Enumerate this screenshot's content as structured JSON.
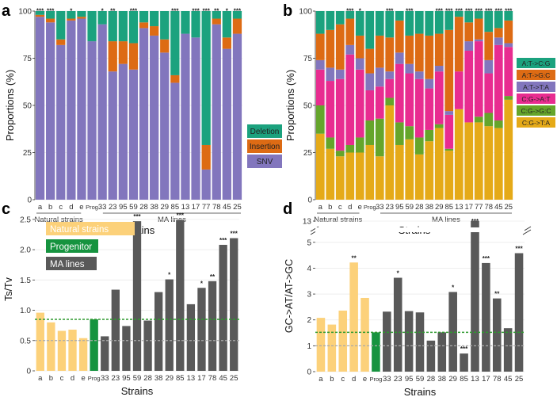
{
  "chart_data": [
    {
      "panel": "a",
      "type": "bar",
      "stacked": true,
      "xlabel": "Strains",
      "ylabel": "Proportions (%)",
      "ylim": [
        0,
        100
      ],
      "yticks": [
        "0",
        "25",
        "50",
        "75",
        "100"
      ],
      "categories": [
        "a",
        "b",
        "c",
        "d",
        "e",
        "Prog",
        "33",
        "23",
        "95",
        "59",
        "28",
        "38",
        "29",
        "85",
        "13",
        "17",
        "77",
        "78",
        "45",
        "25"
      ],
      "group_labels": [
        "Natural strains",
        "MA lines"
      ],
      "significance": [
        "***",
        "***",
        "",
        "*",
        "",
        "",
        "*",
        "**",
        "",
        "***",
        "",
        "",
        "",
        "***",
        "",
        "***",
        "***",
        "**",
        "*",
        "***"
      ],
      "legend": [
        "Deletion",
        "Insertion",
        "SNV"
      ],
      "colors": {
        "SNV": "#8276bd",
        "Insertion": "#dd6b14",
        "Deletion": "#1ba27e"
      },
      "series": [
        {
          "name": "SNV",
          "values": [
            97,
            94,
            82,
            95,
            96,
            84,
            93,
            68,
            72,
            69,
            91,
            87,
            78,
            62,
            88,
            86,
            16,
            93,
            80,
            88
          ]
        },
        {
          "name": "Insertion",
          "values": [
            1,
            2,
            3,
            1,
            1,
            0,
            0,
            16,
            12,
            14,
            3,
            5,
            7,
            4,
            0,
            0,
            13,
            3,
            6,
            8
          ]
        },
        {
          "name": "Deletion",
          "values": [
            2,
            4,
            15,
            4,
            3,
            16,
            7,
            16,
            16,
            17,
            6,
            8,
            15,
            34,
            12,
            14,
            71,
            4,
            14,
            4
          ]
        }
      ]
    },
    {
      "panel": "b",
      "type": "bar",
      "stacked": true,
      "xlabel": "Strains",
      "ylabel": "Proportions (%)",
      "ylim": [
        0,
        100
      ],
      "yticks": [
        "0",
        "25",
        "50",
        "75",
        "100"
      ],
      "categories": [
        "a",
        "b",
        "c",
        "d",
        "e",
        "Prog",
        "33",
        "23",
        "95",
        "59",
        "28",
        "38",
        "29",
        "85",
        "13",
        "17",
        "77",
        "78",
        "45",
        "25"
      ],
      "group_labels": [
        "Natural strains",
        "MA lines"
      ],
      "significance": [
        "",
        "",
        "",
        "***",
        "*",
        "",
        "",
        "***",
        "",
        "***",
        "",
        "",
        "***",
        "***",
        "***",
        "***",
        "***",
        "***",
        "***",
        "***"
      ],
      "legend": [
        "A:T->C:G",
        "A:T->G:C",
        "A:T->T:A",
        "C:G->A:T",
        "C:G->G:C",
        "C:G->T:A"
      ],
      "colors": {
        "A:T->C:G": "#1ba27e",
        "A:T->G:C": "#dd6b14",
        "A:T->T:A": "#8276bd",
        "C:G->A:T": "#e82c90",
        "C:G->G:C": "#65a52b",
        "C:G->T:A": "#e5aa18"
      },
      "series": [
        {
          "name": "C:G->T:A",
          "values": [
            35,
            27,
            23,
            25,
            25,
            29,
            23,
            50,
            29,
            32,
            24,
            31,
            38,
            26,
            48,
            41,
            41,
            39,
            38,
            53
          ]
        },
        {
          "name": "C:G->G:C",
          "values": [
            15,
            6,
            3,
            4,
            8,
            13,
            20,
            4,
            12,
            7,
            9,
            6,
            2,
            1,
            0,
            0,
            3,
            7,
            4,
            2
          ]
        },
        {
          "name": "C:G->A:T",
          "values": [
            19,
            30,
            38,
            48,
            36,
            16,
            17,
            10,
            31,
            28,
            31,
            22,
            28,
            18,
            20,
            38,
            40,
            21,
            40,
            26
          ]
        },
        {
          "name": "A:T->T:A",
          "values": [
            5,
            7,
            5,
            5,
            6,
            9,
            10,
            4,
            6,
            5,
            4,
            5,
            3,
            2,
            0,
            5,
            1,
            7,
            4,
            2
          ]
        },
        {
          "name": "A:T->G:C",
          "values": [
            14,
            20,
            24,
            14,
            12,
            13,
            17,
            18,
            17,
            15,
            20,
            23,
            17,
            43,
            29,
            10,
            11,
            15,
            5,
            12
          ]
        },
        {
          "name": "A:T->C:G",
          "values": [
            12,
            10,
            7,
            4,
            13,
            20,
            13,
            14,
            5,
            13,
            12,
            13,
            12,
            10,
            3,
            6,
            4,
            11,
            9,
            5
          ]
        }
      ]
    },
    {
      "panel": "c",
      "type": "bar",
      "xlabel": "Strains",
      "ylabel": "Ts/Tv",
      "ylim": [
        0,
        2.6
      ],
      "yticks": [
        "0",
        "0.5",
        "1.0",
        "1.5",
        "2.0",
        "2.5"
      ],
      "categories": [
        "a",
        "b",
        "c",
        "d",
        "e",
        "Prog",
        "33",
        "23",
        "95",
        "59",
        "28",
        "38",
        "29",
        "85",
        "13",
        "17",
        "78",
        "45",
        "25"
      ],
      "values": [
        0.96,
        0.8,
        0.66,
        0.68,
        0.54,
        0.85,
        0.57,
        1.34,
        0.74,
        2.47,
        0.83,
        1.3,
        1.51,
        2.49,
        1.1,
        1.37,
        1.48,
        2.08,
        2.19
      ],
      "groups": [
        "natural",
        "natural",
        "natural",
        "natural",
        "natural",
        "progenitor",
        "ma",
        "ma",
        "ma",
        "ma",
        "ma",
        "ma",
        "ma",
        "ma",
        "ma",
        "ma",
        "ma",
        "ma",
        "ma"
      ],
      "significance": [
        "",
        "",
        "",
        "",
        "",
        "",
        "",
        "",
        "",
        "***",
        "",
        "",
        "*",
        "***",
        "",
        "*",
        "**",
        "***",
        "***"
      ],
      "reference_lines": {
        "green": 0.85,
        "grey": 0.5
      },
      "legend": [
        "Natural strains",
        "Progenitor",
        "MA lines"
      ],
      "colors": {
        "natural": "#fcd17a",
        "progenitor": "#16933f",
        "ma": "#595959"
      }
    },
    {
      "panel": "d",
      "type": "bar",
      "xlabel": "Strains",
      "ylabel": "GC->AT/AT->GC",
      "ylim": [
        0,
        5.3
      ],
      "axis_break": [
        5.3,
        13
      ],
      "yticks": [
        "0",
        "1",
        "2",
        "3",
        "4",
        "5",
        "13"
      ],
      "categories": [
        "a",
        "b",
        "c",
        "d",
        "e",
        "Prog",
        "33",
        "23",
        "95",
        "59",
        "28",
        "38",
        "29",
        "85",
        "13",
        "17",
        "78",
        "45",
        "25"
      ],
      "values": [
        2.08,
        1.82,
        2.36,
        4.22,
        2.85,
        1.52,
        2.32,
        3.63,
        2.34,
        2.29,
        1.2,
        1.52,
        3.08,
        0.7,
        13.0,
        4.2,
        2.83,
        1.68,
        4.58
      ],
      "groups": [
        "natural",
        "natural",
        "natural",
        "natural",
        "natural",
        "progenitor",
        "ma",
        "ma",
        "ma",
        "ma",
        "ma",
        "ma",
        "ma",
        "ma",
        "ma",
        "ma",
        "ma",
        "ma",
        "ma"
      ],
      "significance": [
        "",
        "",
        "",
        "**",
        "",
        "",
        "",
        "*",
        "",
        "",
        "",
        "",
        "*",
        "***",
        "***",
        "***",
        "**",
        "",
        "***"
      ],
      "reference_lines": {
        "green": 1.52,
        "grey": 1.0
      },
      "colors": {
        "natural": "#fcd17a",
        "progenitor": "#16933f",
        "ma": "#595959"
      }
    }
  ],
  "panel_letters": [
    "a",
    "b",
    "c",
    "d"
  ],
  "group_labels": {
    "natural": "Natural strains",
    "ma": "MA lines"
  },
  "x_title": "Strains"
}
